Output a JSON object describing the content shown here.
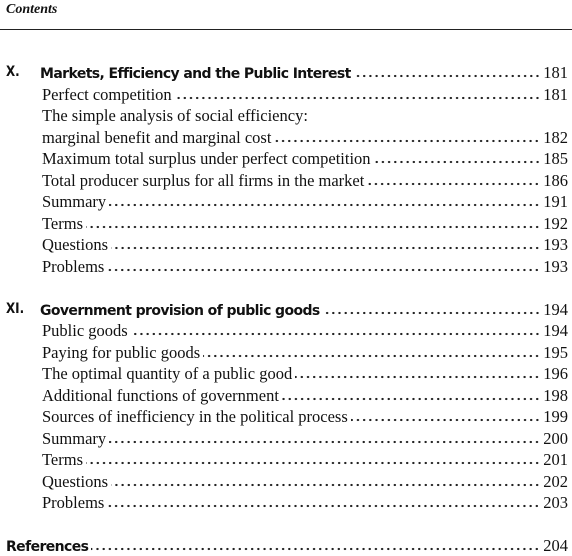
{
  "header": {
    "title": "Contents"
  },
  "chapters": [
    {
      "number": "X.",
      "title": "Markets, Efficiency and the Public Interest",
      "page": 181,
      "entries": [
        {
          "lines": [
            "Perfect competition"
          ],
          "page": 181
        },
        {
          "lines": [
            "The simple analysis of social efficiency:",
            "marginal benefit and marginal cost"
          ],
          "page": 182
        },
        {
          "lines": [
            "Maximum total surplus under perfect competition"
          ],
          "page": 185
        },
        {
          "lines": [
            "Total producer surplus for all firms in the market"
          ],
          "page": 186
        },
        {
          "lines": [
            "Summary"
          ],
          "page": 191
        },
        {
          "lines": [
            "Terms"
          ],
          "page": 192
        },
        {
          "lines": [
            "Questions"
          ],
          "page": 193
        },
        {
          "lines": [
            "Problems"
          ],
          "page": 193
        }
      ]
    },
    {
      "number": "XI.",
      "title": "Government provision of public goods",
      "page": 194,
      "entries": [
        {
          "lines": [
            "Public goods"
          ],
          "page": 194
        },
        {
          "lines": [
            "Paying for public goods"
          ],
          "page": 195
        },
        {
          "lines": [
            "The optimal quantity of a public good"
          ],
          "page": 196
        },
        {
          "lines": [
            "Additional functions of government"
          ],
          "page": 198
        },
        {
          "lines": [
            "Sources of inefficiency in the political process"
          ],
          "page": 199
        },
        {
          "lines": [
            "Summary"
          ],
          "page": 200
        },
        {
          "lines": [
            "Terms"
          ],
          "page": 201
        },
        {
          "lines": [
            "Questions"
          ],
          "page": 202
        },
        {
          "lines": [
            "Problems"
          ],
          "page": 203
        }
      ]
    }
  ],
  "references": {
    "title": "References",
    "page": 204
  }
}
